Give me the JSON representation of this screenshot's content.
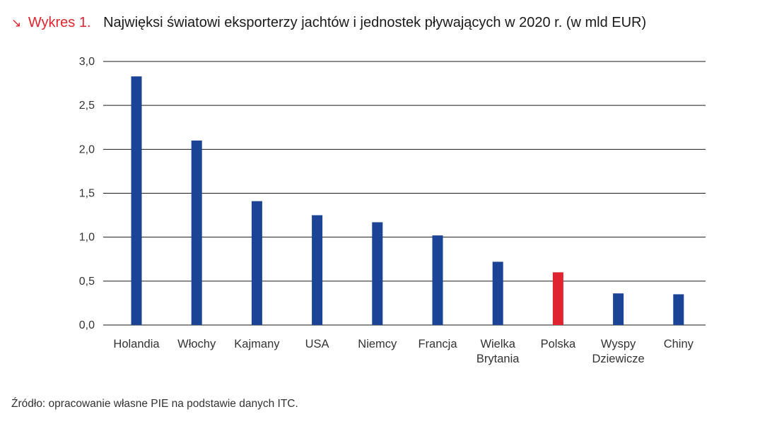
{
  "figure": {
    "label": "Wykres 1.",
    "title": "Najwięksi światowi eksporterzy jachtów i jednostek pływających w 2020 r. (w mld EUR)",
    "source": "Źródło: opracowanie własne PIE na podstawie danych ITC.",
    "colors": {
      "label": "#e0242f",
      "arrow_icon": "arrow-down-right-icon"
    }
  },
  "chart_data": {
    "type": "bar",
    "categories": [
      "Holandia",
      "Włochy",
      "Kajmany",
      "USA",
      "Niemcy",
      "Francja",
      "Wielka Brytania",
      "Polska",
      "Wyspy Dziewicze",
      "Chiny"
    ],
    "category_lines": [
      [
        "Holandia"
      ],
      [
        "Włochy"
      ],
      [
        "Kajmany"
      ],
      [
        "USA"
      ],
      [
        "Niemcy"
      ],
      [
        "Francja"
      ],
      [
        "Wielka",
        "Brytania"
      ],
      [
        "Polska"
      ],
      [
        "Wyspy",
        "Dziewicze"
      ],
      [
        "Chiny"
      ]
    ],
    "values": [
      2.83,
      2.1,
      1.41,
      1.25,
      1.17,
      1.02,
      0.72,
      0.6,
      0.36,
      0.35
    ],
    "ylim": [
      0,
      3.0
    ],
    "yticks": [
      0,
      0.5,
      1.0,
      1.5,
      2.0,
      2.5,
      3.0
    ],
    "ytick_labels": [
      "0,0",
      "0,5",
      "1,0",
      "1,5",
      "2,0",
      "2,5",
      "3,0"
    ],
    "colors": {
      "default": "#1b4496",
      "highlight": "#e0242f"
    },
    "highlight_category": "Polska",
    "grid": true,
    "xlabel": "",
    "ylabel": ""
  }
}
